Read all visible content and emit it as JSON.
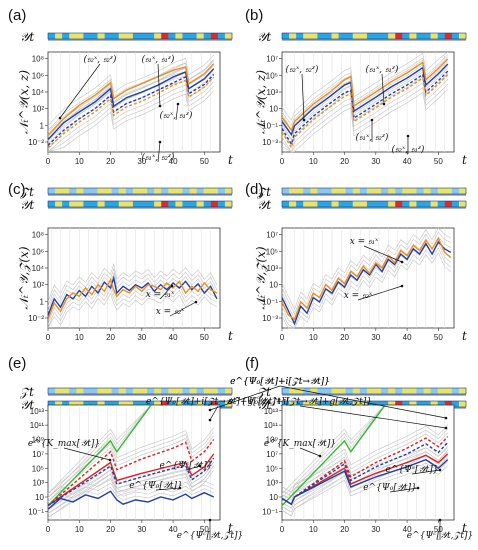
{
  "colors": {
    "blue": "#1f3faa",
    "orange": "#f28c1c",
    "red": "#e02020",
    "green": "#33bb33",
    "gray": "#c4c4c4",
    "bar_yellow": "#e6e46a",
    "bar_cyan": "#2aa6df",
    "bar_lightblue": "#8ec8e8",
    "bar_red": "#dd2a2a"
  },
  "figure": {
    "x_axis_label": "t",
    "panels": [
      {
        "label": "(a)",
        "rows": [
          "𝒴t"
        ]
      },
      {
        "label": "(b)",
        "rows": [
          "𝒴t"
        ]
      },
      {
        "label": "(c)",
        "rows": [
          "𝒵t",
          "𝒴t"
        ]
      },
      {
        "label": "(d)",
        "rows": [
          "𝒵t",
          "𝒴t"
        ]
      },
      {
        "label": "(e)",
        "rows": [
          "𝒵t",
          "𝒴t"
        ]
      },
      {
        "label": "(f)",
        "rows": [
          "𝒵t",
          "𝒴t"
        ]
      }
    ]
  },
  "chart_data": [
    {
      "type": "line",
      "panel": "(a)",
      "ylabel": "𝒩ₜ^𝒴(x, z)",
      "xlabel": "t",
      "xlim": [
        0,
        55
      ],
      "x_ticks": [
        0,
        10,
        20,
        30,
        40,
        50
      ],
      "y_scale": "log",
      "ylim_log10": [
        -3,
        9
      ],
      "y_ticks": [
        "10⁻²",
        "1",
        "10²",
        "10⁴",
        "10⁶",
        "10⁸"
      ],
      "annotations": [
        "(𝔰₂ˣ, 𝔰₂ᶻ)",
        "(𝔰₁ˣ, 𝔰₁ᶻ)",
        "(𝔰₂ˣ, 𝔰₁ᶻ)",
        "(𝔰₁ˣ, 𝔰₂ᶻ)"
      ],
      "series": [
        {
          "color": "blue",
          "style": "solid",
          "x": [
            0,
            5,
            10,
            15,
            20,
            21,
            25,
            30,
            35,
            40,
            44,
            45,
            50,
            53
          ],
          "log10_y": [
            -1.5,
            0.5,
            1.8,
            3,
            4.6,
            2.5,
            3.5,
            4.2,
            5,
            6,
            6.6,
            4.6,
            5.8,
            7
          ]
        },
        {
          "color": "orange",
          "style": "solid",
          "x": [
            0,
            5,
            10,
            15,
            20,
            21,
            25,
            30,
            35,
            40,
            44,
            45,
            50,
            53
          ],
          "log10_y": [
            -1,
            1,
            2.6,
            3.8,
            5.3,
            3.4,
            4.4,
            5.2,
            6,
            6.8,
            7.2,
            5.2,
            6.4,
            7.6
          ]
        },
        {
          "color": "blue",
          "style": "dashed",
          "x": [
            0,
            5,
            10,
            15,
            20,
            21,
            25,
            30,
            35,
            40,
            44,
            45,
            50,
            53
          ],
          "log10_y": [
            -2.2,
            -0.4,
            1,
            2.2,
            3.8,
            1.8,
            2.8,
            3.5,
            4.4,
            5.3,
            6,
            4,
            5.1,
            6.3
          ]
        },
        {
          "color": "orange",
          "style": "dashed",
          "x": [
            0,
            5,
            10,
            15,
            20,
            21,
            25,
            30,
            35,
            40,
            44,
            45,
            50,
            53
          ],
          "log10_y": [
            -2.5,
            -0.8,
            0.6,
            1.8,
            3.4,
            1.4,
            2.4,
            3.1,
            4,
            5,
            5.6,
            3.6,
            4.8,
            6
          ]
        }
      ]
    },
    {
      "type": "line",
      "panel": "(b)",
      "ylabel": "𝒩ₜ^𝒴(x, z)",
      "xlabel": "t",
      "xlim": [
        0,
        55
      ],
      "x_ticks": [
        0,
        10,
        20,
        30,
        40,
        50
      ],
      "y_scale": "log",
      "ylim_log10": [
        -3.5,
        8
      ],
      "y_ticks": [
        "10⁻³",
        "10⁻¹",
        "10",
        "10³",
        "10⁵",
        "10⁷"
      ],
      "annotations": [
        "(𝔰₂ˣ, 𝔰₂ᶻ)",
        "(𝔰₁ˣ, 𝔰₁ᶻ)",
        "(𝔰₁ˣ, 𝔰₂ᶻ)",
        "(𝔰₂ˣ, 𝔰₁ᶻ)"
      ],
      "series": [
        {
          "color": "blue",
          "style": "solid",
          "x": [
            0,
            3,
            4,
            10,
            15,
            20,
            22,
            23,
            30,
            35,
            40,
            45,
            46,
            50,
            53
          ],
          "log10_y": [
            0,
            -1.5,
            -0.5,
            1.5,
            2.8,
            4.2,
            4.5,
            1.2,
            2.8,
            4,
            5,
            6.2,
            4.2,
            5.5,
            6.6
          ]
        },
        {
          "color": "orange",
          "style": "solid",
          "x": [
            0,
            3,
            4,
            10,
            15,
            20,
            22,
            23,
            30,
            35,
            40,
            45,
            46,
            50,
            53
          ],
          "log10_y": [
            0.5,
            -1,
            0,
            2,
            3.3,
            4.8,
            5.2,
            1.8,
            3.4,
            4.6,
            5.6,
            6.8,
            4.8,
            6.1,
            7.2
          ]
        },
        {
          "color": "blue",
          "style": "dashed",
          "x": [
            0,
            3,
            4,
            10,
            15,
            20,
            22,
            23,
            30,
            35,
            40,
            45,
            46,
            50,
            53
          ],
          "log10_y": [
            -0.8,
            -2.6,
            -1.4,
            0.6,
            2,
            3.3,
            3.6,
            0.4,
            2,
            3.2,
            4.2,
            5.4,
            3.4,
            4.7,
            5.8
          ]
        },
        {
          "color": "orange",
          "style": "dashed",
          "x": [
            0,
            3,
            4,
            10,
            15,
            20,
            22,
            23,
            30,
            35,
            40,
            45,
            46,
            50,
            53
          ],
          "log10_y": [
            -1.2,
            -3,
            -1.8,
            0.2,
            1.6,
            2.9,
            3.2,
            0,
            1.6,
            2.8,
            3.8,
            5,
            3,
            4.3,
            5.4
          ]
        }
      ]
    },
    {
      "type": "line",
      "panel": "(c)",
      "ylabel": "𝒩ₜ^𝒴,𝒵(x)",
      "xlabel": "t",
      "xlim": [
        0,
        55
      ],
      "x_ticks": [
        0,
        10,
        20,
        30,
        40,
        50
      ],
      "y_scale": "log",
      "ylim_log10": [
        -3,
        9
      ],
      "y_ticks": [
        "10⁻²",
        "1",
        "10²",
        "10⁴",
        "10⁶",
        "10⁸"
      ],
      "annotations": [
        "x = 𝔰₁ˣ",
        "x = 𝔰₂ˣ"
      ],
      "series": [
        {
          "color": "blue",
          "style": "solid",
          "x": [
            0,
            2,
            4,
            6,
            8,
            10,
            12,
            14,
            16,
            18,
            20,
            21,
            22,
            24,
            26,
            28,
            30,
            32,
            34,
            36,
            38,
            40,
            42,
            44,
            46,
            48,
            50,
            52,
            54
          ],
          "log10_y": [
            -1.5,
            0.5,
            -0.5,
            1,
            0.5,
            1.5,
            0.8,
            2,
            1.2,
            2.5,
            1.8,
            3,
            1.2,
            2,
            1.5,
            2.2,
            1.8,
            2.4,
            1.4,
            2.2,
            1.6,
            2.4,
            1.8,
            2.6,
            1.6,
            2.3,
            1.2,
            2,
            0.5
          ]
        },
        {
          "color": "orange",
          "style": "solid",
          "x": [
            0,
            2,
            4,
            6,
            8,
            10,
            12,
            14,
            16,
            18,
            20,
            21,
            22,
            24,
            26,
            28,
            30,
            32,
            34,
            36,
            38,
            40,
            42,
            44,
            46,
            48,
            50,
            52,
            54
          ],
          "log10_y": [
            -2,
            0,
            -1,
            0.5,
            1.2,
            0.8,
            1.8,
            1,
            2.2,
            1.4,
            2.8,
            1.6,
            0.8,
            1.6,
            1.2,
            2,
            1.4,
            2.2,
            2,
            1.6,
            2.4,
            1.8,
            2.6,
            1.2,
            2,
            1.4,
            2.4,
            1.6,
            1.2
          ]
        }
      ]
    },
    {
      "type": "line",
      "panel": "(d)",
      "ylabel": "𝒩ₜ^𝒴,𝒵(x)",
      "xlabel": "t",
      "xlim": [
        0,
        55
      ],
      "x_ticks": [
        0,
        10,
        20,
        30,
        40,
        50
      ],
      "y_scale": "log",
      "ylim_log10": [
        -3.5,
        8
      ],
      "y_ticks": [
        "10⁻³",
        "10⁻¹",
        "10",
        "10³",
        "10⁵",
        "10⁷"
      ],
      "annotations": [
        "x = 𝔰₁ˣ",
        "x = 𝔰₂ˣ"
      ],
      "series": [
        {
          "color": "blue",
          "style": "solid",
          "x": [
            0,
            2,
            4,
            6,
            8,
            10,
            12,
            14,
            16,
            18,
            20,
            22,
            24,
            26,
            28,
            30,
            32,
            34,
            36,
            38,
            40,
            42,
            44,
            46,
            48,
            50,
            52,
            54
          ],
          "log10_y": [
            0,
            -1.5,
            -3,
            -1,
            -1.8,
            0,
            -0.5,
            1,
            0.5,
            1.8,
            1.2,
            2.6,
            2,
            3.2,
            2.6,
            3.8,
            3,
            4.4,
            3.8,
            5,
            4.4,
            5.6,
            5,
            6.2,
            5,
            6.4,
            5.6,
            5.2
          ]
        },
        {
          "color": "orange",
          "style": "solid",
          "x": [
            0,
            2,
            4,
            6,
            8,
            10,
            12,
            14,
            16,
            18,
            20,
            22,
            24,
            26,
            28,
            30,
            32,
            34,
            36,
            38,
            40,
            42,
            44,
            46,
            48,
            50,
            52,
            54
          ],
          "log10_y": [
            -0.5,
            -2,
            -2.5,
            -0.5,
            -1.2,
            0.5,
            0,
            1.5,
            0.8,
            2.2,
            1.6,
            3,
            2.4,
            3.6,
            2.8,
            4,
            3.4,
            4.8,
            4,
            5.4,
            4.8,
            6,
            5.4,
            6.6,
            5.6,
            6.8,
            5.2,
            4.6
          ]
        }
      ]
    },
    {
      "type": "line",
      "panel": "(e)",
      "xlabel": "t",
      "xlim": [
        0,
        55
      ],
      "x_ticks": [
        0,
        10,
        20,
        30,
        40,
        50
      ],
      "y_scale": "log",
      "ylim_log10": [
        -2,
        14
      ],
      "y_ticks": [
        "10⁻¹",
        "10",
        "10³",
        "10⁵",
        "10⁷",
        "10⁹",
        "10¹¹",
        "10¹³"
      ],
      "annotations": [
        "e^{Ψ₀[𝒴t]+i[𝒵t→𝒴t]}",
        "e^{Ψ₀[𝒴t]+i[𝒵t→𝒴t]+g[𝒴t,𝒵t]}",
        "e^{K_max[𝒴t]}",
        "e^{Ψˢ[𝒴t]}",
        "e^{Ψ₀[𝒴t]}",
        "e^{Ψᶜ[𝒴t,𝒵t]}"
      ],
      "series": [
        {
          "color": "green",
          "style": "solid",
          "x": [
            0,
            20,
            22,
            33
          ],
          "log10_y": [
            0,
            9,
            7.5,
            14
          ]
        },
        {
          "color": "red",
          "style": "solid",
          "x": [
            0,
            20,
            22,
            30,
            40,
            44,
            46,
            50,
            53
          ],
          "log10_y": [
            0,
            6,
            3.5,
            4.5,
            5.6,
            6,
            4.2,
            5.4,
            7.2
          ]
        },
        {
          "color": "red",
          "style": "dashed",
          "x": [
            0,
            20,
            22,
            30,
            40,
            44,
            46,
            50,
            53
          ],
          "log10_y": [
            0,
            7.5,
            5,
            6.5,
            8,
            8.8,
            6.2,
            7.5,
            9.2
          ]
        },
        {
          "color": "blue",
          "style": "dashed",
          "x": [
            0,
            20,
            22,
            30,
            40,
            44,
            46,
            50,
            53
          ],
          "log10_y": [
            0,
            5.5,
            3,
            4,
            5.2,
            5.6,
            3.6,
            4.8,
            6.6
          ]
        },
        {
          "color": "blue",
          "style": "solid",
          "x": [
            0,
            4,
            8,
            12,
            16,
            20,
            22,
            24,
            28,
            32,
            36,
            40,
            44,
            46,
            50,
            53
          ],
          "log10_y": [
            -0.5,
            1,
            0.5,
            1.5,
            1,
            2,
            0.8,
            0.2,
            0.8,
            0.5,
            1.2,
            0.8,
            1.6,
            1,
            1.8,
            1.2
          ]
        }
      ]
    },
    {
      "type": "line",
      "panel": "(f)",
      "xlabel": "t",
      "xlim": [
        0,
        55
      ],
      "x_ticks": [
        0,
        10,
        20,
        30,
        40,
        50
      ],
      "y_scale": "log",
      "ylim_log10": [
        -2,
        14
      ],
      "y_ticks": [
        "10⁻¹",
        "10",
        "10³",
        "10⁵",
        "10⁷",
        "10⁹",
        "10¹¹",
        "10¹³"
      ],
      "annotations": [
        "e^{Ψ₀[𝒴t]+i[𝒵t→𝒴t]}",
        "e^{Ψ₀[𝒴t]+i[𝒵t→𝒴t]+g[𝒴t,𝒵t]}",
        "e^{K_max[𝒴t]}",
        "e^{Ψˢ[𝒴t]}",
        "e^{Ψ₀[𝒴t]}",
        "e^{Ψᶜ[𝒴t,𝒵t]}"
      ],
      "series": [
        {
          "color": "green",
          "style": "solid",
          "x": [
            0,
            20,
            22,
            33
          ],
          "log10_y": [
            0,
            9,
            7.5,
            14
          ]
        },
        {
          "color": "red",
          "style": "solid",
          "x": [
            0,
            3,
            4,
            20,
            22,
            30,
            40,
            46,
            50,
            53
          ],
          "log10_y": [
            1,
            0.2,
            1.2,
            5.2,
            3,
            4.5,
            6,
            7,
            6,
            7.2
          ]
        },
        {
          "color": "red",
          "style": "dashed",
          "x": [
            0,
            3,
            4,
            20,
            22,
            30,
            40,
            46,
            50,
            53
          ],
          "log10_y": [
            1,
            0.2,
            1.2,
            6.2,
            4,
            6,
            8,
            9.4,
            8.2,
            9.6
          ]
        },
        {
          "color": "blue",
          "style": "dashed",
          "x": [
            0,
            3,
            4,
            20,
            22,
            30,
            40,
            46,
            50,
            53
          ],
          "log10_y": [
            1,
            0.2,
            1.2,
            5.8,
            3.5,
            5.4,
            7.2,
            8.6,
            7.4,
            8.8
          ]
        },
        {
          "color": "blue",
          "style": "solid",
          "x": [
            0,
            3,
            4,
            20,
            22,
            30,
            40,
            46,
            50,
            53
          ],
          "log10_y": [
            1,
            0.2,
            1.2,
            4.8,
            2.6,
            4,
            5.4,
            6.4,
            5.2,
            6.4
          ]
        }
      ]
    }
  ]
}
